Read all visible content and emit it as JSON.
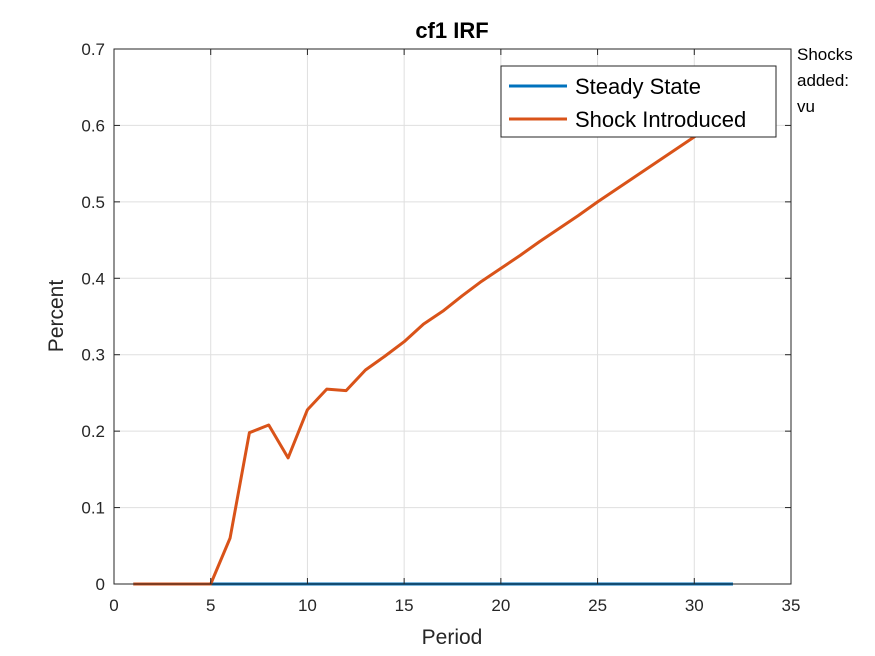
{
  "chart_data": {
    "type": "line",
    "title": "cf1 IRF",
    "xlabel": "Period",
    "ylabel": "Percent",
    "xlim": [
      0,
      35
    ],
    "ylim": [
      0,
      0.7
    ],
    "xticks": [
      0,
      5,
      10,
      15,
      20,
      25,
      30,
      35
    ],
    "yticks": [
      0,
      0.1,
      0.2,
      0.3,
      0.4,
      0.5,
      0.6,
      0.7
    ],
    "xtick_labels": [
      "0",
      "5",
      "10",
      "15",
      "20",
      "25",
      "30",
      "35"
    ],
    "ytick_labels": [
      "0",
      "0.1",
      "0.2",
      "0.3",
      "0.4",
      "0.5",
      "0.6",
      "0.7"
    ],
    "grid": true,
    "legend_position": "top-right",
    "x": [
      1,
      2,
      3,
      4,
      5,
      6,
      7,
      8,
      9,
      10,
      11,
      12,
      13,
      14,
      15,
      16,
      17,
      18,
      19,
      20,
      21,
      22,
      23,
      24,
      25,
      26,
      27,
      28,
      29,
      30,
      31,
      32
    ],
    "series": [
      {
        "name": "Steady State",
        "color": "#0072BD",
        "values": [
          0,
          0,
          0,
          0,
          0,
          0,
          0,
          0,
          0,
          0,
          0,
          0,
          0,
          0,
          0,
          0,
          0,
          0,
          0,
          0,
          0,
          0,
          0,
          0,
          0,
          0,
          0,
          0,
          0,
          0,
          0,
          0
        ]
      },
      {
        "name": "Shock Introduced",
        "color": "#D95319",
        "values": [
          0,
          0,
          0,
          0,
          0,
          0.06,
          0.198,
          0.208,
          0.165,
          0.228,
          0.255,
          0.253,
          0.28,
          0.298,
          0.317,
          0.34,
          0.357,
          0.377,
          0.396,
          0.413,
          0.43,
          0.448,
          0.465,
          0.482,
          0.5,
          0.517,
          0.534,
          0.551,
          0.568,
          0.585,
          0.601,
          0.617
        ]
      }
    ],
    "annotation_lines": [
      "Shocks",
      "added:",
      "vu"
    ]
  }
}
